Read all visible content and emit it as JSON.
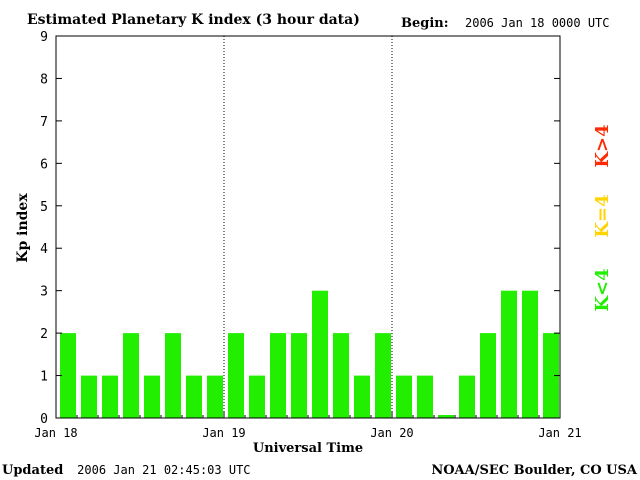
{
  "header": {
    "title": "Estimated Planetary K index (3 hour data)",
    "begin_label": "Begin:",
    "begin_value": "2006 Jan 18 0000 UTC"
  },
  "footer": {
    "updated_label": "Updated",
    "updated_value": "2006 Jan 21 02:45:03 UTC",
    "credit": "NOAA/SEC Boulder, CO USA"
  },
  "legend": [
    {
      "label": "K>4",
      "color": "#ff2a00"
    },
    {
      "label": "K=4",
      "color": "#ffd400"
    },
    {
      "label": "K<4",
      "color": "#22ee00"
    }
  ],
  "chart_data": {
    "type": "bar",
    "title": "Estimated Planetary K index (3 hour data)",
    "xlabel": "Universal Time",
    "ylabel": "Kp index",
    "ylim": [
      0,
      9
    ],
    "y_ticks": [
      0,
      1,
      2,
      3,
      4,
      5,
      6,
      7,
      8,
      9
    ],
    "x_ticks": [
      "Jan 18",
      "Jan 19",
      "Jan 20",
      "Jan 21"
    ],
    "day_separators": [
      "Jan 19",
      "Jan 20"
    ],
    "interval_hours": 3,
    "values": [
      2,
      1,
      1,
      2,
      1,
      2,
      1,
      1,
      2,
      1,
      2,
      2,
      3,
      2,
      1,
      2,
      1,
      1,
      0.07,
      1,
      2,
      3,
      3,
      2
    ],
    "bar_color": "#22ee00"
  }
}
